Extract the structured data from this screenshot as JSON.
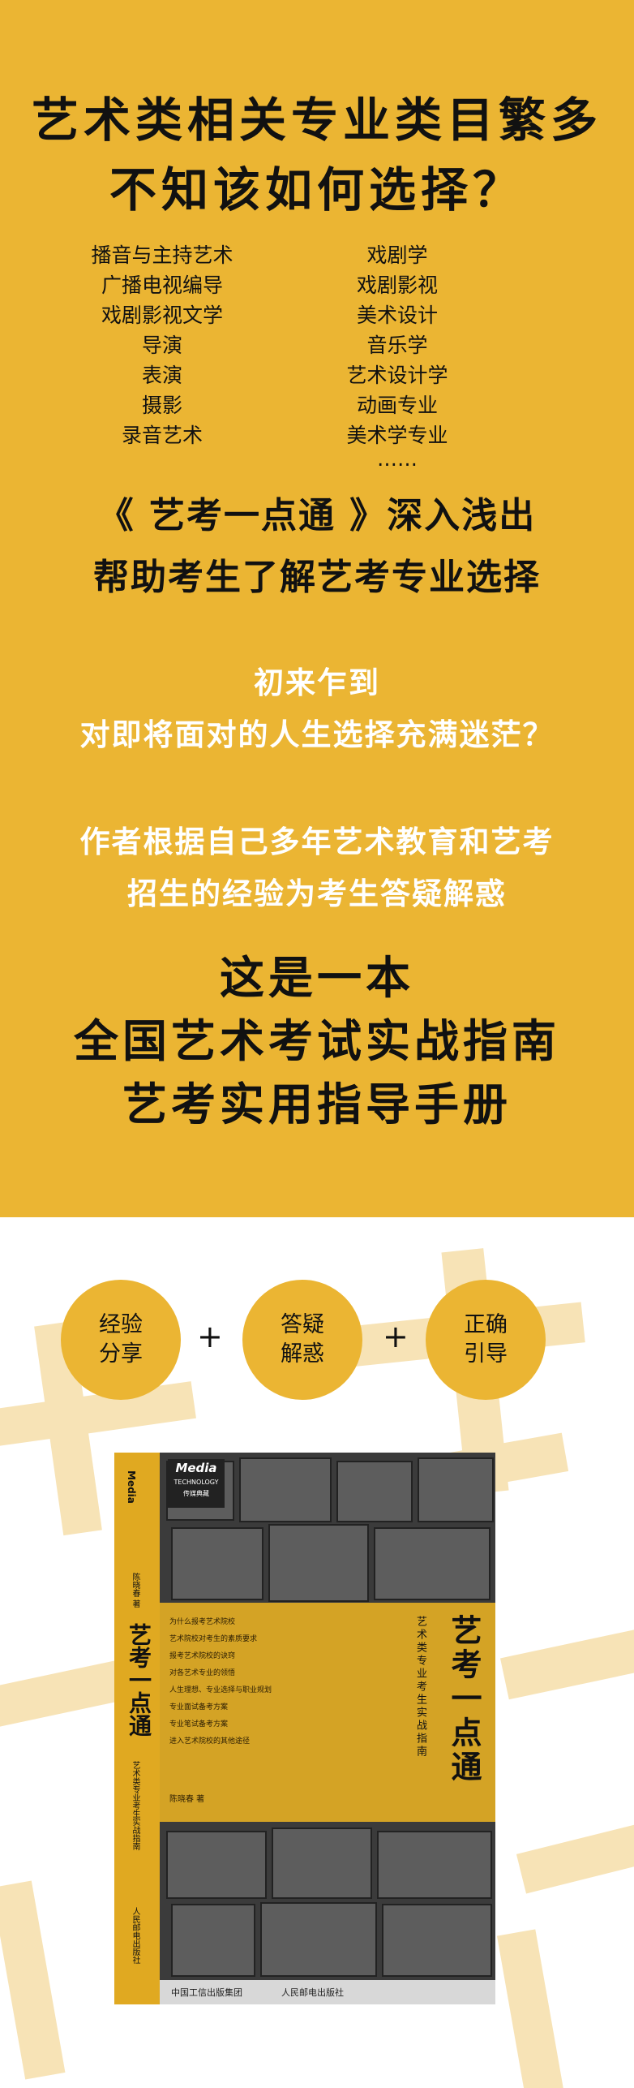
{
  "headline": {
    "line1": "艺术类相关专业类目繁多",
    "line2": "不知该如何选择？"
  },
  "majors": {
    "left": [
      "播音与主持艺术",
      "广播电视编导",
      "戏剧影视文学",
      "导演",
      "表演",
      "摄影",
      "录音艺术"
    ],
    "right": [
      "戏剧学",
      "戏剧影视",
      "美术设计",
      "音乐学",
      "艺术设计学",
      "动画专业",
      "美术学专业",
      "……"
    ]
  },
  "intro": {
    "line1": "《 艺考一点通 》深入浅出",
    "line2": "帮助考生了解艺考专业选择"
  },
  "newcomer": {
    "line1": "初来乍到",
    "line2": "对即将面对的人生选择充满迷茫？"
  },
  "author_note": {
    "line1": "作者根据自己多年艺术教育和艺考",
    "line2": "招生的经验为考生答疑解惑"
  },
  "closing": {
    "line1": "这是一本",
    "line2": "全国艺术考试实战指南",
    "line3": "艺考实用指导手册"
  },
  "features": [
    {
      "label": "经验\n分享"
    },
    {
      "label": "答疑\n解惑"
    },
    {
      "label": "正确\n引导"
    }
  ],
  "plus_sign": "+",
  "book": {
    "logo": "Media",
    "logo_sub": "TECHNOLOGY",
    "logo_cn": "传媒典藏",
    "spine_title": "艺考一点通",
    "spine_subtitle": "艺术类专业考生实战指南",
    "spine_author": "陈晓春 著",
    "spine_publisher": "人民邮电出版社",
    "title": "艺考一点通",
    "subtitle": "艺术类专业考生实战指南",
    "author": "陈晓春 著",
    "contents": [
      "为什么报考艺术院校",
      "艺术院校对考生的素质要求",
      "报考艺术院校的诀窍",
      "对各艺术专业的领悟",
      "人生理想、专业选择与职业规划",
      "专业面试备考方案",
      "专业笔试备考方案",
      "进入艺术院校的其他途径"
    ],
    "publisher_group": "中国工信出版集团",
    "publisher": "人民邮电出版社"
  },
  "colors": {
    "accent": "#ebb533",
    "watermark": "#f7e3b6",
    "text": "#111111"
  }
}
